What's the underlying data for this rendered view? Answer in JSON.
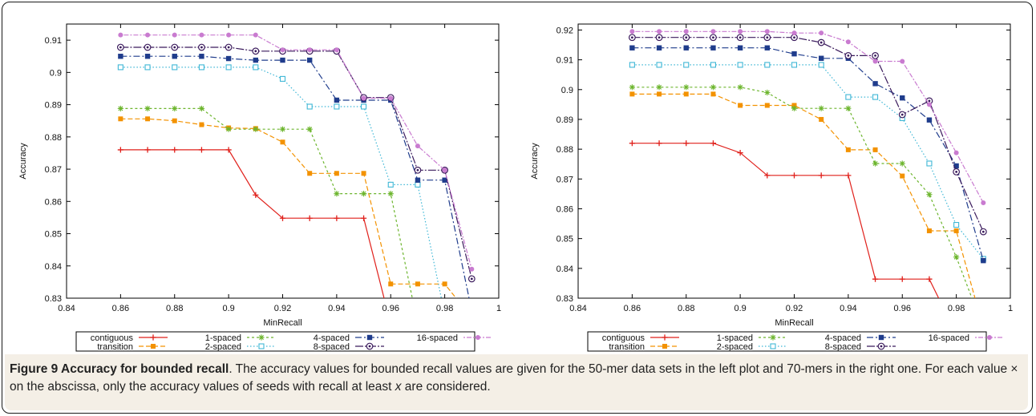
{
  "caption": {
    "label": "Figure 9 Accuracy for bounded recall",
    "text_1": ". The accuracy values for bounded recall values are given for the 50-mer data sets in the left plot and 70-mers in the right one. For each value × on the abscissa, only the accuracy values of seeds with recall at least ",
    "var_x": "x",
    "text_2": " are considered."
  },
  "colors": {
    "contiguous": "#e0201b",
    "transition": "#f39200",
    "1-spaced": "#6cb52d",
    "2-spaced": "#3fb7d6",
    "4-spaced": "#1f3c8c",
    "8-spaced": "#3a1a5c",
    "16-spaced": "#c97bd0"
  },
  "chart_data": [
    {
      "type": "line",
      "xlabel": "MinRecall",
      "ylabel": "Accuracy",
      "xlim": [
        0.84,
        1
      ],
      "ylim": [
        0.83,
        0.915
      ],
      "xticks": [
        "0.84",
        "0.86",
        "0.88",
        "0.9",
        "0.92",
        "0.94",
        "0.96",
        "0.98",
        "1"
      ],
      "yticks": [
        "0.83",
        "0.84",
        "0.85",
        "0.86",
        "0.87",
        "0.88",
        "0.89",
        "0.9",
        "0.91"
      ],
      "grid": false,
      "legend": "bottom",
      "x": [
        0.86,
        0.87,
        0.88,
        0.89,
        0.9,
        0.91,
        0.92,
        0.93,
        0.94,
        0.95,
        0.96,
        0.97,
        0.98,
        0.99
      ],
      "series": [
        {
          "name": "contiguous",
          "values": [
            0.876,
            0.876,
            0.876,
            0.876,
            0.876,
            0.862,
            0.8548,
            0.8548,
            0.8548,
            0.8548,
            0.822,
            null,
            null,
            null
          ]
        },
        {
          "name": "transition",
          "values": [
            0.8856,
            0.8856,
            0.885,
            0.8838,
            0.8828,
            0.8826,
            0.8784,
            0.8687,
            0.8687,
            0.8687,
            0.8344,
            0.8344,
            0.8344,
            0.824
          ]
        },
        {
          "name": "1-spaced",
          "values": [
            0.8888,
            0.8888,
            0.8888,
            0.8888,
            0.8824,
            0.8824,
            0.8824,
            0.8824,
            0.8624,
            0.8624,
            0.8624,
            0.822,
            null,
            null
          ]
        },
        {
          "name": "2-spaced",
          "values": [
            0.9016,
            0.9016,
            0.9016,
            0.9016,
            0.9016,
            0.9016,
            0.898,
            0.8894,
            0.8894,
            0.8894,
            0.8652,
            0.8652,
            0.825,
            null
          ]
        },
        {
          "name": "4-spaced",
          "values": [
            0.905,
            0.905,
            0.905,
            0.905,
            0.9043,
            0.9038,
            0.9038,
            0.9038,
            0.8914,
            0.8914,
            0.8914,
            0.8666,
            0.8666,
            0.826
          ]
        },
        {
          "name": "8-spaced",
          "values": [
            0.9078,
            0.9078,
            0.9078,
            0.9078,
            0.9078,
            0.9066,
            0.9066,
            0.9066,
            0.9066,
            0.8922,
            0.8922,
            0.8697,
            0.8697,
            0.836
          ]
        },
        {
          "name": "16-spaced",
          "values": [
            0.9116,
            0.9116,
            0.9116,
            0.9116,
            0.9116,
            0.9116,
            0.907,
            0.907,
            0.907,
            0.892,
            0.892,
            0.8772,
            0.8697,
            0.839
          ]
        }
      ]
    },
    {
      "type": "line",
      "xlabel": "MinRecall",
      "ylabel": "Accuracy",
      "xlim": [
        0.84,
        1
      ],
      "ylim": [
        0.83,
        0.922
      ],
      "xticks": [
        "0.84",
        "0.86",
        "0.88",
        "0.9",
        "0.92",
        "0.94",
        "0.96",
        "0.98",
        "1"
      ],
      "yticks": [
        "0.83",
        "0.84",
        "0.85",
        "0.86",
        "0.87",
        "0.88",
        "0.89",
        "0.9",
        "0.91",
        "0.92"
      ],
      "grid": false,
      "legend": "bottom",
      "x": [
        0.86,
        0.87,
        0.88,
        0.89,
        0.9,
        0.91,
        0.92,
        0.93,
        0.94,
        0.95,
        0.96,
        0.97,
        0.98,
        0.99
      ],
      "series": [
        {
          "name": "contiguous",
          "values": [
            0.882,
            0.882,
            0.882,
            0.882,
            0.8788,
            0.8712,
            0.8712,
            0.8712,
            0.8712,
            0.8364,
            0.8364,
            0.8364,
            0.818,
            null
          ]
        },
        {
          "name": "transition",
          "values": [
            0.8985,
            0.8985,
            0.8985,
            0.8985,
            0.8947,
            0.8947,
            0.8947,
            0.89,
            0.8798,
            0.8798,
            0.871,
            0.8526,
            0.8526,
            0.82
          ]
        },
        {
          "name": "1-spaced",
          "values": [
            0.9008,
            0.9008,
            0.9008,
            0.9008,
            0.9008,
            0.899,
            0.8937,
            0.8937,
            0.8937,
            0.8752,
            0.8752,
            0.8648,
            0.8438,
            0.82
          ]
        },
        {
          "name": "2-spaced",
          "values": [
            0.9083,
            0.9083,
            0.9083,
            0.9083,
            0.9083,
            0.9083,
            0.9083,
            0.9083,
            0.8975,
            0.8975,
            0.8904,
            0.8752,
            0.8546,
            0.8432
          ]
        },
        {
          "name": "4-spaced",
          "values": [
            0.914,
            0.914,
            0.914,
            0.914,
            0.914,
            0.914,
            0.912,
            0.9105,
            0.9105,
            0.902,
            0.8972,
            0.8898,
            0.8744,
            0.8426
          ]
        },
        {
          "name": "8-spaced",
          "values": [
            0.9175,
            0.9175,
            0.9175,
            0.9175,
            0.9175,
            0.9175,
            0.9175,
            0.9158,
            0.9114,
            0.9114,
            0.8916,
            0.8962,
            0.8724,
            0.8523
          ]
        },
        {
          "name": "16-spaced",
          "values": [
            0.9195,
            0.9195,
            0.9195,
            0.9195,
            0.9195,
            0.9195,
            0.919,
            0.919,
            0.916,
            0.9095,
            0.9095,
            0.895,
            0.8788,
            0.862
          ]
        }
      ]
    }
  ]
}
